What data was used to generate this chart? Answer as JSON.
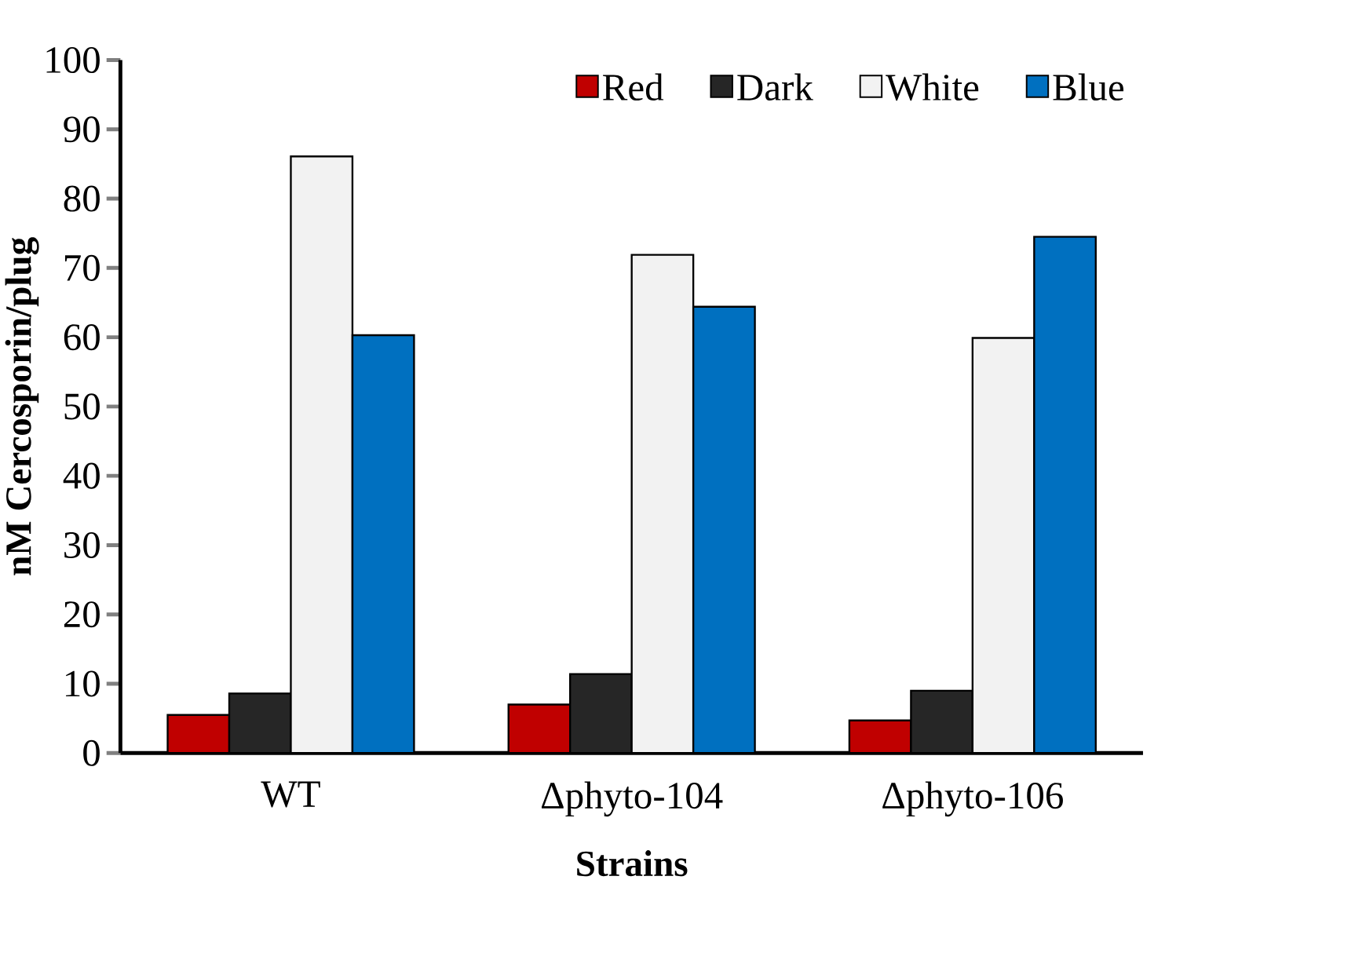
{
  "chart_data": {
    "type": "bar",
    "xlabel": "Strains",
    "ylabel": "nM Cercosporin/plug",
    "categories": [
      "WT",
      "Δphyto-104",
      "Δphyto-106"
    ],
    "series": [
      {
        "name": "Red",
        "color": "#c00000",
        "values": [
          5.5,
          7.0,
          4.7
        ]
      },
      {
        "name": "Dark",
        "color": "#262626",
        "values": [
          8.6,
          11.4,
          9.0
        ]
      },
      {
        "name": "White",
        "color": "#f2f2f2",
        "values": [
          86.1,
          71.9,
          59.9
        ]
      },
      {
        "name": "Blue",
        "color": "#0070c0",
        "values": [
          60.3,
          64.4,
          74.5
        ]
      }
    ],
    "ylim": [
      0,
      100
    ],
    "yticks": [
      0,
      10,
      20,
      30,
      40,
      50,
      60,
      70,
      80,
      90,
      100
    ],
    "grid": false,
    "legend": "top right"
  }
}
